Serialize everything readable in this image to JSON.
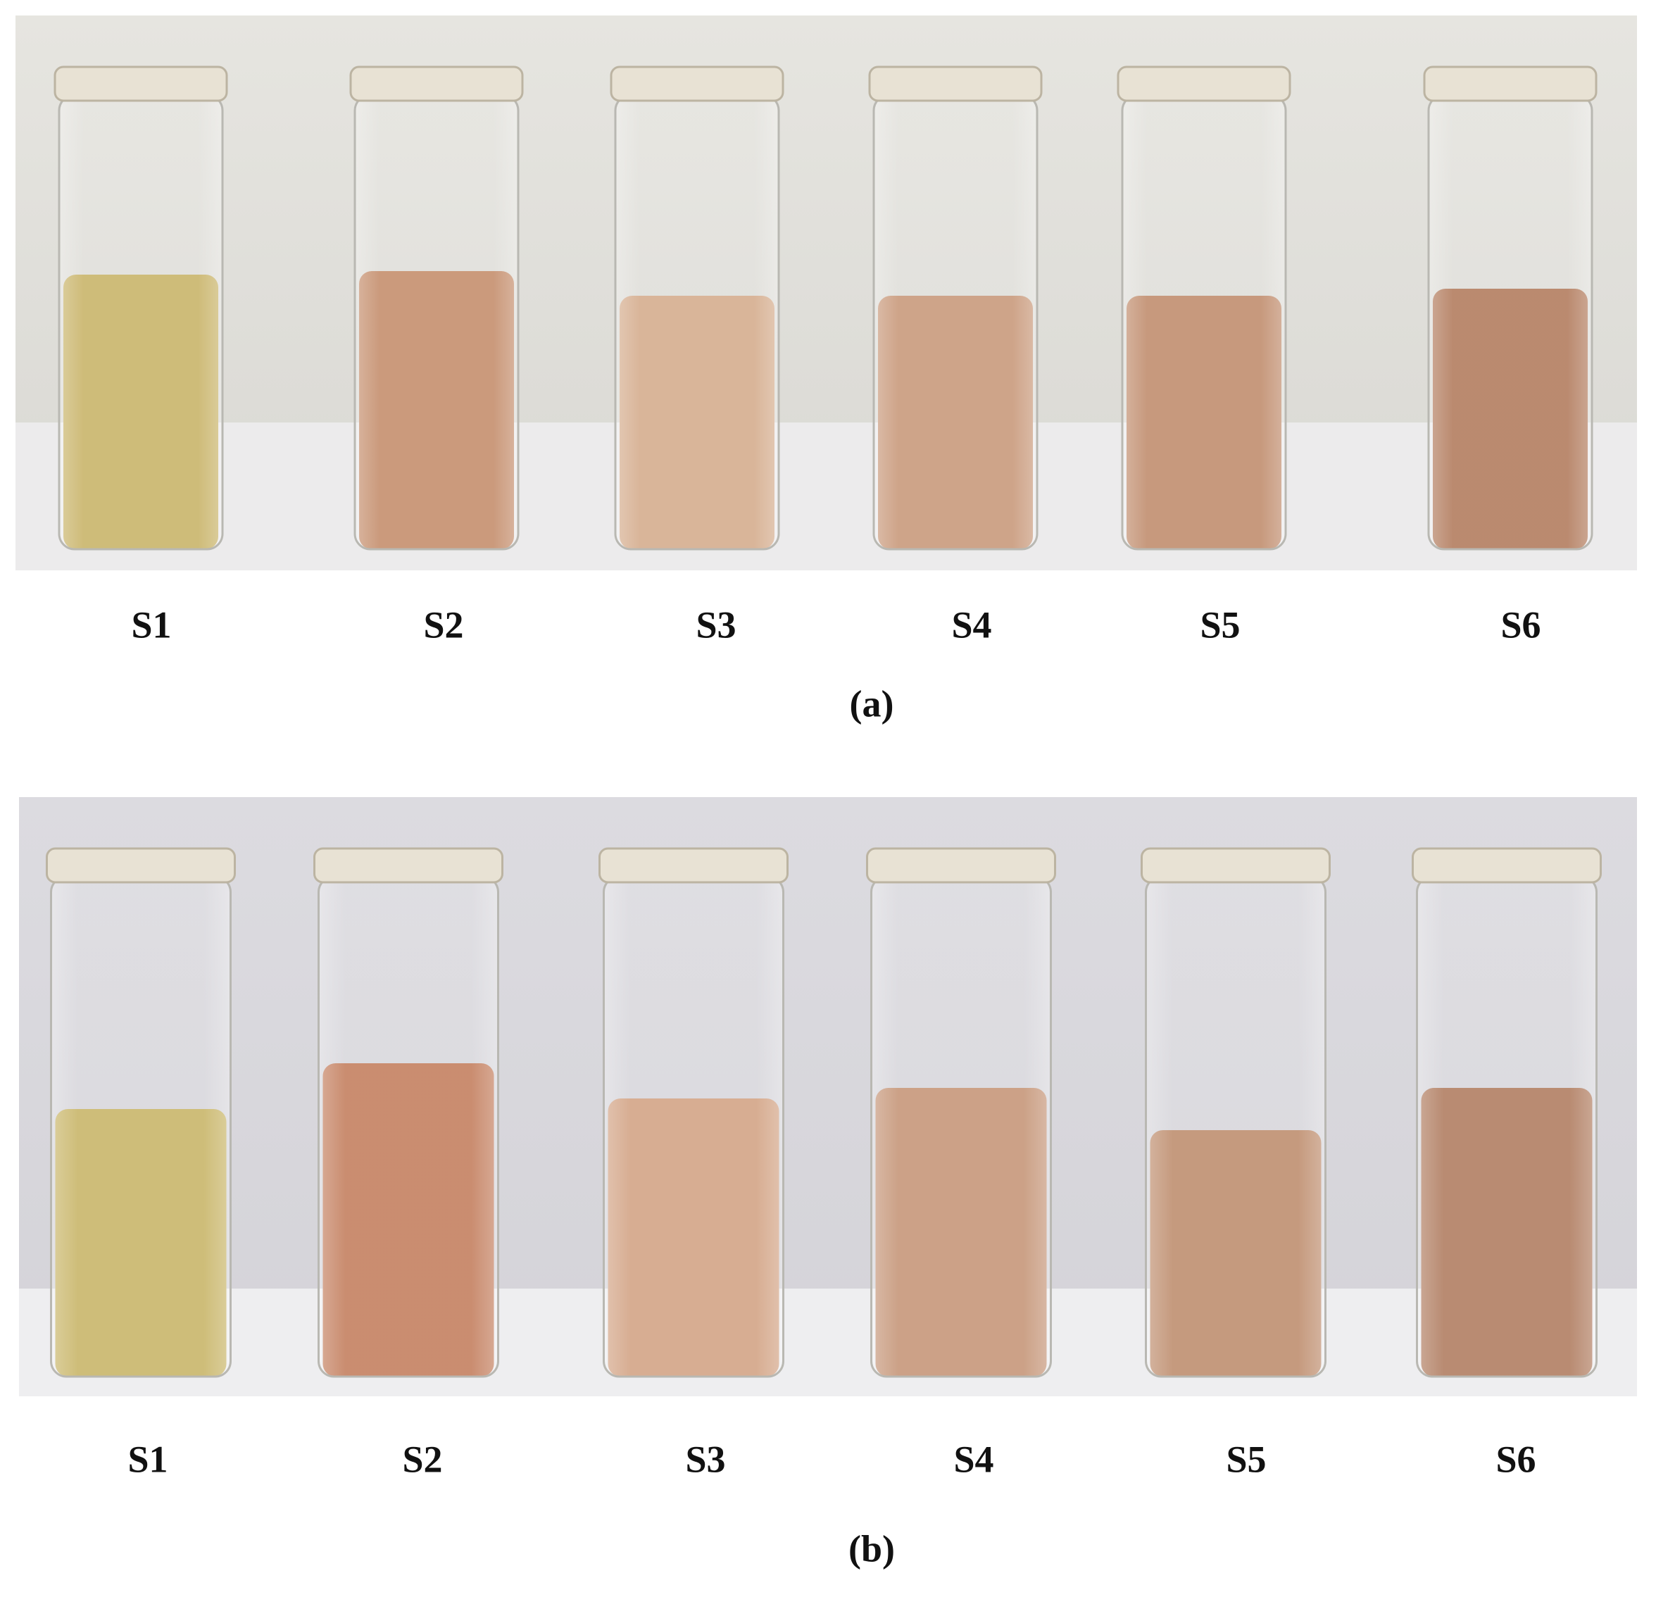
{
  "panels": [
    {
      "labels": [
        "S1",
        "S2",
        "S3",
        "S4",
        "S5",
        "S6"
      ],
      "caption": "(a)"
    },
    {
      "labels": [
        "S1",
        "S2",
        "S3",
        "S4",
        "S5",
        "S6"
      ],
      "caption": "(b)"
    }
  ]
}
